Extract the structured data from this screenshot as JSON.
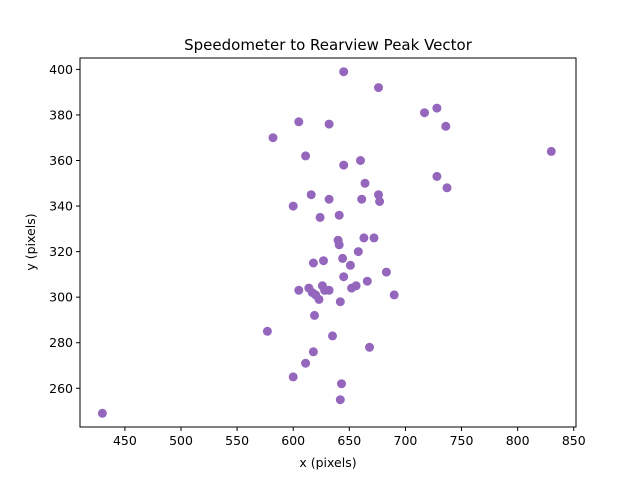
{
  "chart_data": {
    "type": "scatter",
    "title": "Speedometer to Rearview Peak Vector",
    "xlabel": "x (pixels)",
    "ylabel": "y (pixels)",
    "xlim": [
      410,
      852
    ],
    "ylim": [
      243,
      405
    ],
    "xticks": [
      450,
      500,
      550,
      600,
      650,
      700,
      750,
      800,
      850
    ],
    "yticks": [
      260,
      280,
      300,
      320,
      340,
      360,
      380,
      400
    ],
    "grid": false,
    "marker_color": "#9467bd",
    "series": [
      {
        "points": [
          [
            645,
            399
          ],
          [
            676,
            392
          ],
          [
            728,
            383
          ],
          [
            717,
            381
          ],
          [
            736,
            375
          ],
          [
            605,
            377
          ],
          [
            632,
            376
          ],
          [
            582,
            370
          ],
          [
            830,
            364
          ],
          [
            611,
            362
          ],
          [
            660,
            360
          ],
          [
            645,
            358
          ],
          [
            728,
            353
          ],
          [
            664,
            350
          ],
          [
            737,
            348
          ],
          [
            616,
            345
          ],
          [
            676,
            345
          ],
          [
            632,
            343
          ],
          [
            661,
            343
          ],
          [
            677,
            342
          ],
          [
            600,
            340
          ],
          [
            641,
            336
          ],
          [
            624,
            335
          ],
          [
            663,
            326
          ],
          [
            672,
            326
          ],
          [
            640,
            325
          ],
          [
            641,
            323
          ],
          [
            658,
            320
          ],
          [
            644,
            317
          ],
          [
            627,
            316
          ],
          [
            618,
            315
          ],
          [
            651,
            314
          ],
          [
            683,
            311
          ],
          [
            645,
            309
          ],
          [
            666,
            307
          ],
          [
            656,
            305
          ],
          [
            652,
            304
          ],
          [
            626,
            305
          ],
          [
            605,
            303
          ],
          [
            614,
            304
          ],
          [
            632,
            303
          ],
          [
            628,
            303
          ],
          [
            617,
            302
          ],
          [
            620,
            301
          ],
          [
            690,
            301
          ],
          [
            623,
            299
          ],
          [
            642,
            298
          ],
          [
            619,
            292
          ],
          [
            577,
            285
          ],
          [
            635,
            283
          ],
          [
            668,
            278
          ],
          [
            618,
            276
          ],
          [
            611,
            271
          ],
          [
            600,
            265
          ],
          [
            643,
            262
          ],
          [
            642,
            255
          ],
          [
            430,
            249
          ]
        ]
      }
    ]
  }
}
